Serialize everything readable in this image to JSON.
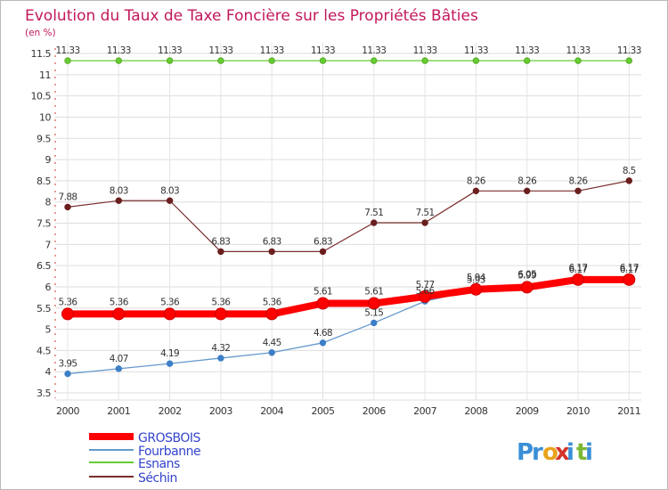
{
  "chart_data": {
    "type": "line",
    "title": "Evolution du Taux de Taxe Foncière sur les Propriétés Bâties",
    "ylabel": "(en %)",
    "xlabel": "",
    "ylim": [
      3.5,
      11.5
    ],
    "yticks": [
      3.5,
      4,
      4.5,
      5,
      5.5,
      6,
      6.5,
      7,
      7.5,
      8,
      8.5,
      9,
      9.5,
      10,
      10.5,
      11,
      11.5
    ],
    "categories": [
      "2000",
      "2001",
      "2002",
      "2003",
      "2004",
      "2005",
      "2006",
      "2007",
      "2008",
      "2009",
      "2010",
      "2011"
    ],
    "series": [
      {
        "name": "GROSBOIS",
        "color": "#ff0000",
        "values": [
          5.36,
          5.36,
          5.36,
          5.36,
          5.36,
          5.61,
          5.61,
          5.77,
          5.94,
          5.99,
          6.17,
          6.17
        ],
        "labels": [
          "5.36",
          "5.36",
          "5.36",
          "5.36",
          "5.36",
          "5.61",
          "5.61",
          "5.77",
          "5.94",
          "5.99",
          "6.17",
          "6.17"
        ]
      },
      {
        "name": "Fourbanne",
        "color": "#6699cc",
        "values": [
          3.95,
          4.07,
          4.19,
          4.32,
          4.45,
          4.68,
          5.15,
          5.66,
          5.93,
          6.05,
          6.17,
          6.17
        ],
        "labels": [
          "3.95",
          "4.07",
          "4.19",
          "4.32",
          "4.45",
          "4.68",
          "5.15",
          "5.66",
          "5.93",
          "6.05",
          "6.17",
          "6.17"
        ]
      },
      {
        "name": "Esnans",
        "color": "#66cc33",
        "values": [
          11.33,
          11.33,
          11.33,
          11.33,
          11.33,
          11.33,
          11.33,
          11.33,
          11.33,
          11.33,
          11.33,
          11.33
        ],
        "labels": [
          "11.33",
          "11.33",
          "11.33",
          "11.33",
          "11.33",
          "11.33",
          "11.33",
          "11.33",
          "11.33",
          "11.33",
          "11.33",
          "11.33"
        ]
      },
      {
        "name": "Séchin",
        "color": "#7a2e2e",
        "values": [
          7.88,
          8.03,
          8.03,
          6.83,
          6.83,
          6.83,
          7.51,
          7.51,
          8.26,
          8.26,
          8.26,
          8.5
        ],
        "labels": [
          "7.88",
          "8.03",
          "8.03",
          "6.83",
          "6.83",
          "6.83",
          "7.51",
          "7.51",
          "8.26",
          "8.26",
          "8.26",
          "8.5"
        ]
      }
    ]
  },
  "logo": {
    "text": "Proxiti",
    "letter_colors": [
      "#3a8fd6",
      "#3a8fd6",
      "#e8a21c",
      "#d3352b",
      "#3a8fd6",
      "#7ab834",
      "#3a8fd6"
    ]
  }
}
